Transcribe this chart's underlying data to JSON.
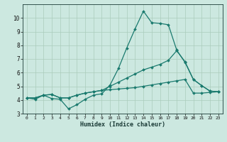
{
  "xlabel": "Humidex (Indice chaleur)",
  "bg_color": "#cce8e0",
  "grid_color": "#aaccbb",
  "line_color": "#1a7a6e",
  "xlim": [
    -0.5,
    23.5
  ],
  "ylim": [
    3,
    11
  ],
  "yticks": [
    3,
    4,
    5,
    6,
    7,
    8,
    9,
    10
  ],
  "xticks": [
    0,
    1,
    2,
    3,
    4,
    5,
    6,
    7,
    8,
    9,
    10,
    11,
    12,
    13,
    14,
    15,
    16,
    17,
    18,
    19,
    20,
    21,
    22,
    23
  ],
  "line1_x": [
    0,
    1,
    2,
    3,
    4,
    5,
    6,
    7,
    8,
    9,
    10,
    11,
    12,
    13,
    14,
    15,
    16,
    17,
    18,
    19,
    20,
    21,
    22,
    23
  ],
  "line1_y": [
    4.15,
    4.05,
    4.35,
    4.1,
    4.05,
    3.35,
    3.65,
    4.05,
    4.35,
    4.45,
    5.1,
    6.3,
    7.8,
    9.2,
    10.5,
    9.65,
    9.6,
    9.5,
    7.65,
    6.75,
    5.5,
    5.05,
    4.65,
    4.6
  ],
  "line2_x": [
    0,
    1,
    2,
    3,
    4,
    5,
    6,
    7,
    8,
    9,
    10,
    11,
    12,
    13,
    14,
    15,
    16,
    17,
    18,
    19,
    20,
    21,
    22,
    23
  ],
  "line2_y": [
    4.15,
    4.15,
    4.35,
    4.4,
    4.15,
    4.15,
    4.35,
    4.5,
    4.6,
    4.7,
    5.0,
    5.3,
    5.6,
    5.9,
    6.2,
    6.4,
    6.6,
    6.9,
    7.6,
    6.8,
    5.5,
    5.05,
    4.65,
    4.6
  ],
  "line3_x": [
    0,
    1,
    2,
    3,
    4,
    5,
    6,
    7,
    8,
    9,
    10,
    11,
    12,
    13,
    14,
    15,
    16,
    17,
    18,
    19,
    20,
    21,
    22,
    23
  ],
  "line3_y": [
    4.15,
    4.15,
    4.35,
    4.4,
    4.15,
    4.15,
    4.35,
    4.5,
    4.6,
    4.7,
    4.75,
    4.8,
    4.85,
    4.9,
    5.0,
    5.1,
    5.2,
    5.3,
    5.4,
    5.5,
    4.5,
    4.5,
    4.55,
    4.6
  ]
}
